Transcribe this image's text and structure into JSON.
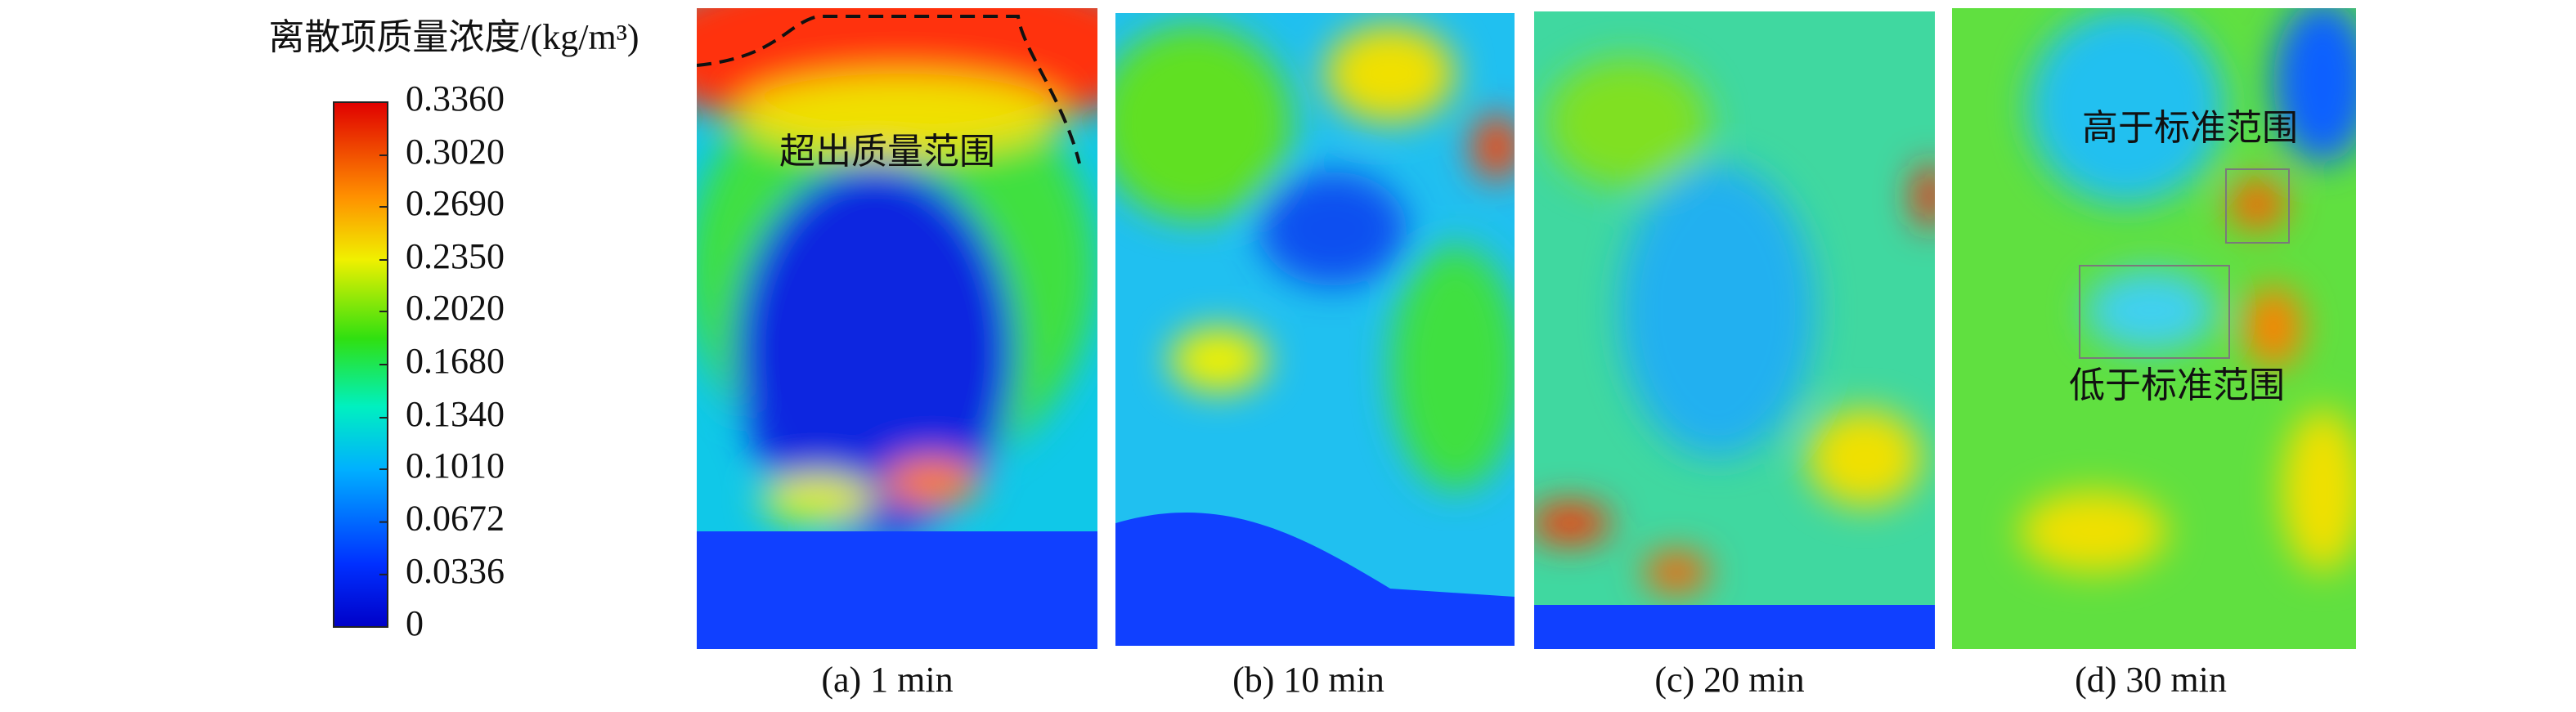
{
  "chart_data": {
    "type": "heatmap",
    "colorbar": {
      "title": "离散项质量浓度/(kg/m³)",
      "zlim": [
        0,
        0.336
      ],
      "ticks": [
        {
          "value": 0.336,
          "label": "0.3360"
        },
        {
          "value": 0.302,
          "label": "0.3020"
        },
        {
          "value": 0.269,
          "label": "0.2690"
        },
        {
          "value": 0.235,
          "label": "0.2350"
        },
        {
          "value": 0.202,
          "label": "0.2020"
        },
        {
          "value": 0.168,
          "label": "0.1680"
        },
        {
          "value": 0.134,
          "label": "0.1340"
        },
        {
          "value": 0.101,
          "label": "0.1010"
        },
        0.0672,
        0.0336,
        0
      ]
    },
    "panels": [
      {
        "caption": "(a) 1 min",
        "annotations": [
          "超出质量范围"
        ]
      },
      {
        "caption": "(b) 10 min"
      },
      {
        "caption": "(c) 20 min"
      },
      {
        "caption": "(d) 30 min",
        "annotations": [
          "高于标准范围",
          "低于标准范围"
        ]
      }
    ]
  }
}
